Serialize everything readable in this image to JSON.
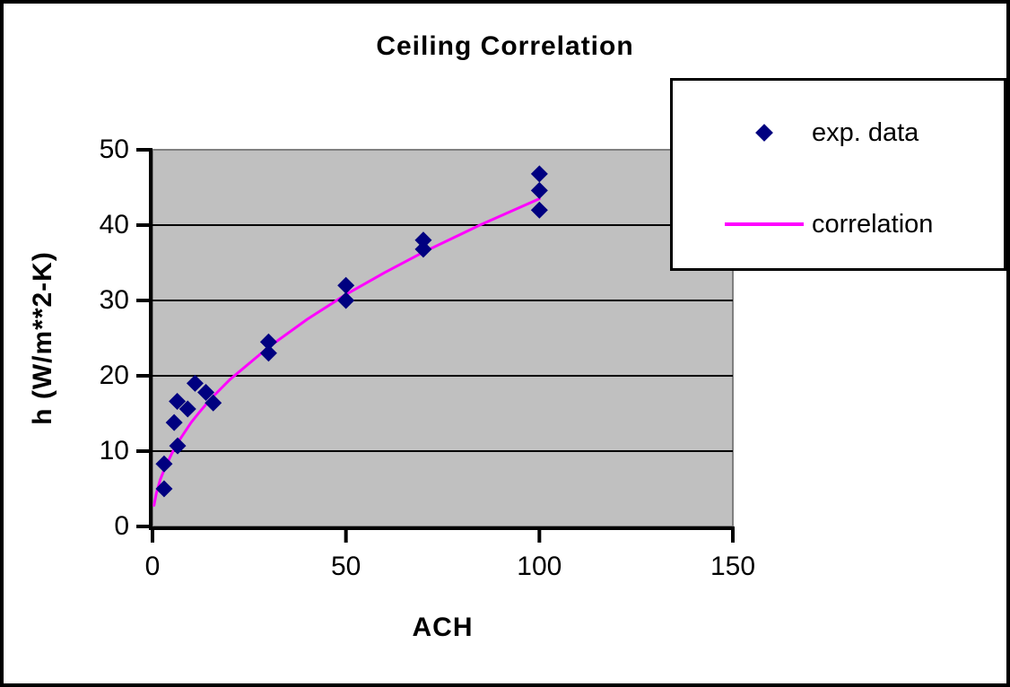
{
  "chart_data": {
    "type": "scatter",
    "title": "Ceiling Correlation",
    "xlabel": "ACH",
    "ylabel": "h (W/m**2-K)",
    "xlim": [
      0,
      150
    ],
    "ylim": [
      0,
      50
    ],
    "x_ticks": [
      0,
      50,
      100,
      150
    ],
    "y_ticks": [
      0,
      10,
      20,
      30,
      40,
      50
    ],
    "gridlines": {
      "horizontal_at": [
        10,
        20,
        30,
        40
      ],
      "color": "#000000"
    },
    "plot_area_bg": "#C0C0C0",
    "plot_area_border": "#808080",
    "axis_color": "#000000",
    "legend_position": "top-right",
    "series": [
      {
        "name": "exp. data",
        "kind": "scatter",
        "marker": "diamond",
        "color": "#000080",
        "points": [
          [
            3,
            5
          ],
          [
            3,
            8.3
          ],
          [
            5.6,
            13.8
          ],
          [
            6.4,
            16.6
          ],
          [
            6.5,
            10.7
          ],
          [
            9.1,
            15.6
          ],
          [
            11,
            19
          ],
          [
            13.8,
            17.8
          ],
          [
            15.7,
            16.4
          ],
          [
            30,
            23
          ],
          [
            30,
            24.5
          ],
          [
            50,
            30
          ],
          [
            50,
            32
          ],
          [
            70,
            36.8
          ],
          [
            70,
            38
          ],
          [
            100,
            42
          ],
          [
            100,
            44.6
          ],
          [
            100,
            46.8
          ]
        ]
      },
      {
        "name": "correlation",
        "kind": "line",
        "color": "#FF00FF",
        "points": [
          [
            0.4,
            2.8
          ],
          [
            1,
            4.4
          ],
          [
            2,
            6.2
          ],
          [
            3,
            7.5
          ],
          [
            5,
            9.7
          ],
          [
            7,
            11.5
          ],
          [
            10,
            13.8
          ],
          [
            12,
            15.1
          ],
          [
            15,
            16.9
          ],
          [
            20,
            19.5
          ],
          [
            30,
            23.8
          ],
          [
            40,
            27.5
          ],
          [
            50,
            30.8
          ],
          [
            60,
            33.7
          ],
          [
            70,
            36.4
          ],
          [
            85,
            40.1
          ],
          [
            100,
            43.5
          ]
        ]
      }
    ]
  },
  "legend": {
    "items": [
      {
        "label": "exp. data",
        "marker": "diamond",
        "color": "#000080"
      },
      {
        "label": "correlation",
        "marker": "line",
        "color": "#FF00FF"
      }
    ]
  }
}
